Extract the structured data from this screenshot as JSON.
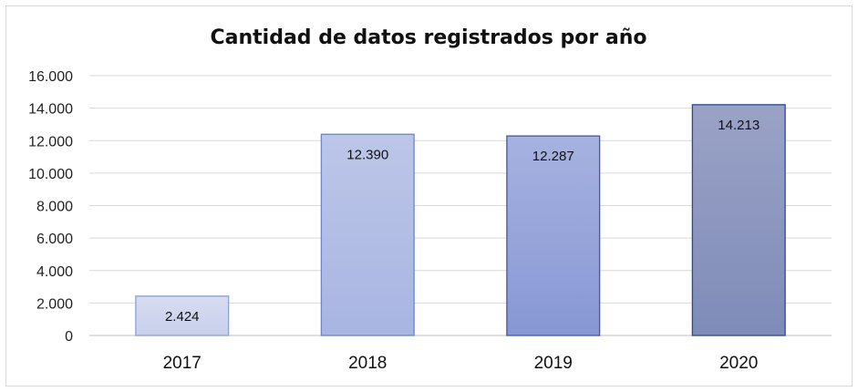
{
  "chart_data": {
    "type": "bar",
    "title": "Cantidad de datos registrados por año",
    "categories": [
      "2017",
      "2018",
      "2019",
      "2020"
    ],
    "values": [
      2424,
      12390,
      12287,
      14213
    ],
    "data_labels": [
      "2.424",
      "12.390",
      "12.287",
      "14.213"
    ],
    "ylim": [
      0,
      16000
    ],
    "yticks": [
      0,
      2000,
      4000,
      6000,
      8000,
      10000,
      12000,
      14000,
      16000
    ],
    "ytick_labels": [
      "0",
      "2.000",
      "4.000",
      "6.000",
      "8.000",
      "10.000",
      "12.000",
      "14.000",
      "16.000"
    ],
    "grid": true,
    "legend": "none",
    "colors": {
      "bar_fills_top": [
        "#d6dcf0",
        "#bcc6e8",
        "#a6b2e0",
        "#9aa3c6"
      ],
      "bar_fills_bottom": [
        "#c8d0ec",
        "#a9b5e2",
        "#8797d4",
        "#7f8bb8"
      ],
      "bar_strokes": [
        "#8f9fd4",
        "#6f84c8",
        "#3f57a8",
        "#2f4790"
      ]
    }
  }
}
